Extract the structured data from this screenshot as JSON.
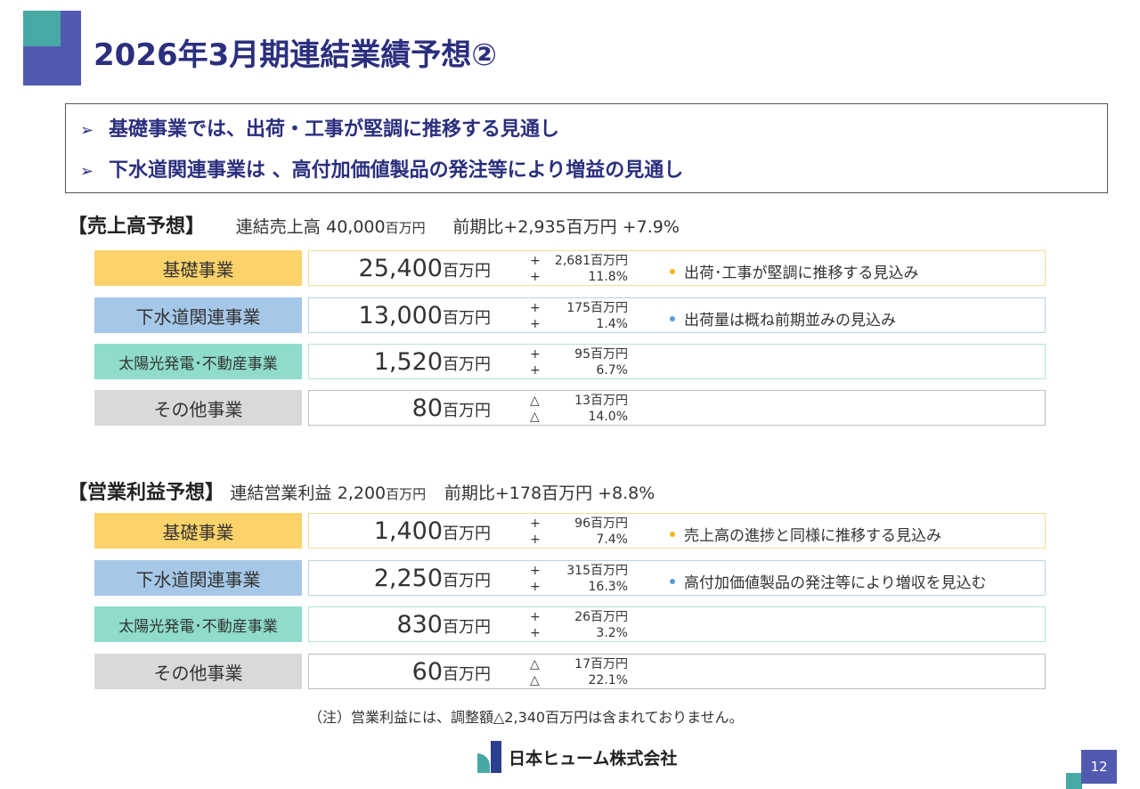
{
  "title": "2026年3月期連結業績予想②",
  "summary": [
    "基礎事業では、出荷・工事が堅調に推移する見通し",
    "下水道関連事業は 、高付加価値製品の発注等により増益の見通し"
  ],
  "arrow_glyph": "➢",
  "sales": {
    "heading": "【売上高予想】",
    "total_label": "連結売上高",
    "total_value": "40,000",
    "total_unit": "百万円",
    "yoy_label": "前期比+2,935百万円 +7.9%",
    "rows": [
      {
        "label": "基礎事業",
        "amount": "25,400",
        "unit": "百万円",
        "sign1": "+",
        "diff": "2,681百万円",
        "sign2": "+",
        "pct": "11.8%",
        "note": "出荷･工事が堅調に推移する見込み"
      },
      {
        "label": "下水道関連事業",
        "amount": "13,000",
        "unit": "百万円",
        "sign1": "+",
        "diff": "175百万円",
        "sign2": "+",
        "pct": "1.4%",
        "note": "出荷量は概ね前期並みの見込み"
      },
      {
        "label": "太陽光発電･不動産事業",
        "amount": "1,520",
        "unit": "百万円",
        "sign1": "+",
        "diff": "95百万円",
        "sign2": "+",
        "pct": "6.7%",
        "note": ""
      },
      {
        "label": "その他事業",
        "amount": "80",
        "unit": "百万円",
        "sign1": "△",
        "diff": "13百万円",
        "sign2": "△",
        "pct": "14.0%",
        "note": ""
      }
    ]
  },
  "profit": {
    "heading": "【営業利益予想】",
    "total_label": "連結営業利益",
    "total_value": "2,200",
    "total_unit": "百万円",
    "yoy_label": "前期比+178百万円 +8.8%",
    "rows": [
      {
        "label": "基礎事業",
        "amount": "1,400",
        "unit": "百万円",
        "sign1": "+",
        "diff": "96百万円",
        "sign2": "+",
        "pct": "7.4%",
        "note": "売上高の進捗と同様に推移する見込み"
      },
      {
        "label": "下水道関連事業",
        "amount": "2,250",
        "unit": "百万円",
        "sign1": "+",
        "diff": "315百万円",
        "sign2": "+",
        "pct": "16.3%",
        "note": "高付加価値製品の発注等により増収を見込む"
      },
      {
        "label": "太陽光発電･不動産事業",
        "amount": "830",
        "unit": "百万円",
        "sign1": "+",
        "diff": "26百万円",
        "sign2": "+",
        "pct": "3.2%",
        "note": ""
      },
      {
        "label": "その他事業",
        "amount": "60",
        "unit": "百万円",
        "sign1": "△",
        "diff": "17百万円",
        "sign2": "△",
        "pct": "22.1%",
        "note": ""
      }
    ]
  },
  "footnote": "（注）営業利益には、調整額△2,340百万円は含まれておりません。",
  "company_name": "日本ヒューム株式会社",
  "page_number": "12",
  "colors": {
    "title": "#2b2f7e",
    "kiso": "#fcd36a",
    "gesuido": "#a6c8e8",
    "taiyoko": "#8fdccc",
    "sonota": "#d9d9d9"
  }
}
